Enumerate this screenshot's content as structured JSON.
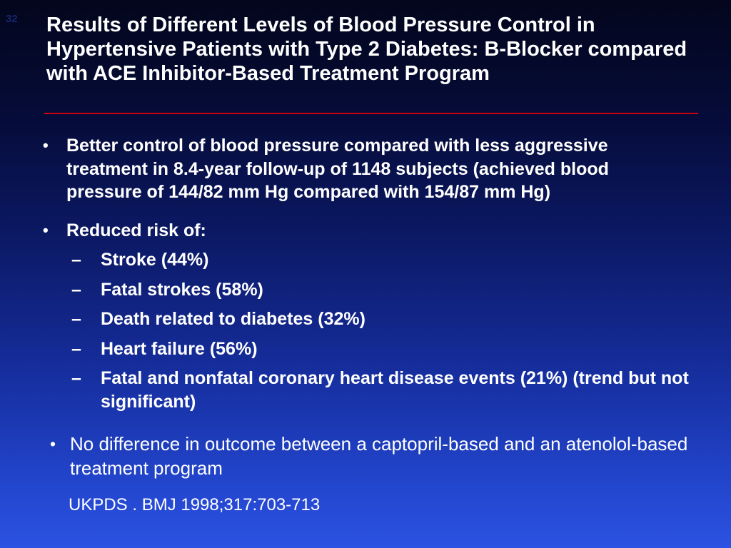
{
  "slide": {
    "number": "32",
    "title": "Results of Different Levels of Blood Pressure Control in Hypertensive Patients with Type 2 Diabetes: B-Blocker compared with ACE Inhibitor-Based Treatment Program",
    "bullets": [
      {
        "level": 1,
        "bold": true,
        "text": "Better control of blood pressure compared with less aggressive treatment in 8.4-year follow-up of 1148 subjects (achieved blood pressure of 144/82 mm Hg compared with 154/87 mm Hg)"
      },
      {
        "level": 1,
        "bold": true,
        "text": "Reduced risk of:"
      },
      {
        "level": 2,
        "bold": true,
        "text": "Stroke (44%)"
      },
      {
        "level": 2,
        "bold": true,
        "text": "Fatal strokes (58%)"
      },
      {
        "level": 2,
        "bold": true,
        "text": "Death related to diabetes (32%)"
      },
      {
        "level": 2,
        "bold": true,
        "text": "Heart failure (56%)"
      },
      {
        "level": 2,
        "bold": true,
        "text": "Fatal and nonfatal coronary heart disease events (21%) (trend but not significant)"
      },
      {
        "level": 1,
        "bold": false,
        "text": "No difference in outcome between a captopril-based and an atenolol-based treatment program"
      }
    ],
    "citation": "UKPDS . BMJ 1998;317:703-713",
    "markers": {
      "level1": "•",
      "level2": "–"
    },
    "colors": {
      "background_top": "#03061c",
      "background_bottom": "#2c52e2",
      "title_text": "#ffffff",
      "body_text": "#ffffff",
      "divider": "#cc0011",
      "slide_number": "#16266e"
    }
  }
}
